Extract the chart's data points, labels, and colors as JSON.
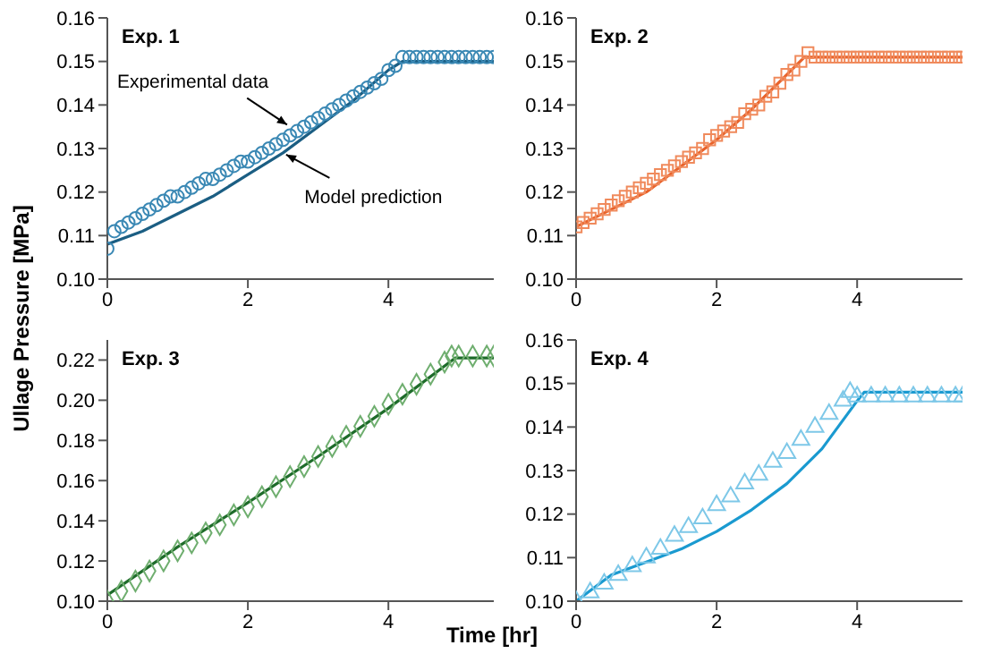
{
  "chart_data": [
    {
      "type": "scatter",
      "title": "Exp. 1",
      "ylabel": "Ullage Pressure [MPa]",
      "xlim": [
        0,
        5.5
      ],
      "xticks": [
        0,
        2,
        4
      ],
      "ylim": [
        0.1,
        0.16
      ],
      "yticks": [
        {
          "value": 0.1,
          "label": "0.10"
        },
        {
          "value": 0.11,
          "label": "0.11"
        },
        {
          "value": 0.12,
          "label": "0.12"
        },
        {
          "value": 0.13,
          "label": "0.13"
        },
        {
          "value": 0.14,
          "label": "0.14"
        },
        {
          "value": 0.15,
          "label": "0.15"
        },
        {
          "value": 0.16,
          "label": "0.16"
        }
      ],
      "grid": false,
      "annotations": [
        {
          "text": "Experimental data",
          "x": 2.6,
          "y": 0.135
        },
        {
          "text": "Model prediction",
          "x": 2.5,
          "y": 0.129
        }
      ],
      "series": [
        {
          "marker": "circle",
          "color": "#3a88b4",
          "x": [
            0,
            0.1,
            0.2,
            0.3,
            0.4,
            0.5,
            0.6,
            0.7,
            0.8,
            0.9,
            1.0,
            1.1,
            1.2,
            1.3,
            1.4,
            1.5,
            1.6,
            1.7,
            1.8,
            1.9,
            2.0,
            2.1,
            2.2,
            2.3,
            2.4,
            2.5,
            2.6,
            2.7,
            2.8,
            2.9,
            3.0,
            3.1,
            3.2,
            3.3,
            3.4,
            3.5,
            3.6,
            3.7,
            3.8,
            3.9,
            4.0,
            4.1,
            4.2,
            4.3,
            4.4,
            4.5,
            4.6,
            4.7,
            4.8,
            4.9,
            5.0,
            5.1,
            5.2,
            5.3,
            5.4,
            5.5
          ],
          "values": [
            0.107,
            0.111,
            0.112,
            0.113,
            0.114,
            0.115,
            0.116,
            0.117,
            0.118,
            0.119,
            0.119,
            0.12,
            0.121,
            0.122,
            0.123,
            0.123,
            0.124,
            0.125,
            0.126,
            0.127,
            0.127,
            0.128,
            0.129,
            0.13,
            0.131,
            0.132,
            0.133,
            0.134,
            0.135,
            0.136,
            0.137,
            0.138,
            0.139,
            0.14,
            0.141,
            0.142,
            0.143,
            0.144,
            0.145,
            0.146,
            0.148,
            0.149,
            0.151,
            0.151,
            0.151,
            0.151,
            0.151,
            0.151,
            0.151,
            0.151,
            0.151,
            0.151,
            0.151,
            0.151,
            0.151,
            0.151
          ]
        },
        {
          "type": "line",
          "color": "#1b5e83",
          "x": [
            0,
            0.5,
            1,
            1.5,
            2,
            2.5,
            3,
            3.5,
            4,
            4.2,
            5.5
          ],
          "values": [
            0.108,
            0.111,
            0.115,
            0.119,
            0.124,
            0.129,
            0.135,
            0.141,
            0.148,
            0.15,
            0.15
          ]
        }
      ]
    },
    {
      "type": "scatter",
      "title": "Exp. 2",
      "xlim": [
        0,
        5.5
      ],
      "xticks": [
        0,
        2,
        4
      ],
      "ylim": [
        0.1,
        0.16
      ],
      "yticks": [
        {
          "value": 0.1,
          "label": "0.10"
        },
        {
          "value": 0.11,
          "label": "0.11"
        },
        {
          "value": 0.12,
          "label": "0.12"
        },
        {
          "value": 0.13,
          "label": "0.13"
        },
        {
          "value": 0.14,
          "label": "0.14"
        },
        {
          "value": 0.15,
          "label": "0.15"
        },
        {
          "value": 0.16,
          "label": "0.16"
        }
      ],
      "grid": false,
      "series": [
        {
          "marker": "square",
          "color": "#f08a5c",
          "x": [
            0,
            0.1,
            0.2,
            0.3,
            0.4,
            0.5,
            0.6,
            0.7,
            0.8,
            0.9,
            1.0,
            1.1,
            1.2,
            1.3,
            1.4,
            1.5,
            1.6,
            1.7,
            1.8,
            1.9,
            2.0,
            2.1,
            2.2,
            2.3,
            2.4,
            2.5,
            2.6,
            2.7,
            2.8,
            2.9,
            3.0,
            3.1,
            3.2,
            3.3,
            3.4,
            3.5,
            3.6,
            3.7,
            3.8,
            3.9,
            4.0,
            4.1,
            4.2,
            4.3,
            4.4,
            4.5,
            4.6,
            4.7,
            4.8,
            4.9,
            5.0,
            5.1,
            5.2,
            5.3,
            5.4,
            5.5
          ],
          "values": [
            0.112,
            0.113,
            0.114,
            0.115,
            0.116,
            0.117,
            0.118,
            0.119,
            0.12,
            0.121,
            0.122,
            0.123,
            0.124,
            0.125,
            0.126,
            0.127,
            0.128,
            0.129,
            0.13,
            0.132,
            0.133,
            0.134,
            0.135,
            0.136,
            0.138,
            0.139,
            0.14,
            0.142,
            0.143,
            0.145,
            0.147,
            0.148,
            0.15,
            0.152,
            0.151,
            0.151,
            0.151,
            0.151,
            0.151,
            0.151,
            0.151,
            0.151,
            0.151,
            0.151,
            0.151,
            0.151,
            0.151,
            0.151,
            0.151,
            0.151,
            0.151,
            0.151,
            0.151,
            0.151,
            0.151,
            0.151
          ]
        },
        {
          "type": "line",
          "color": "#e8622a",
          "x": [
            0,
            0.5,
            1,
            1.5,
            2,
            2.5,
            3,
            3.25,
            5.5
          ],
          "values": [
            0.112,
            0.116,
            0.12,
            0.126,
            0.132,
            0.139,
            0.147,
            0.151,
            0.151
          ]
        }
      ]
    },
    {
      "type": "scatter",
      "title": "Exp. 3",
      "xlabel": "Time [hr]",
      "xlim": [
        0,
        5.5
      ],
      "xticks": [
        0,
        2,
        4
      ],
      "ylim": [
        0.1,
        0.23
      ],
      "yticks": [
        {
          "value": 0.1,
          "label": "0.10"
        },
        {
          "value": 0.12,
          "label": "0.12"
        },
        {
          "value": 0.14,
          "label": "0.14"
        },
        {
          "value": 0.16,
          "label": "0.16"
        },
        {
          "value": 0.18,
          "label": "0.18"
        },
        {
          "value": 0.2,
          "label": "0.20"
        },
        {
          "value": 0.22,
          "label": "0.22"
        }
      ],
      "grid": false,
      "series": [
        {
          "marker": "diamond",
          "color": "#6fae6f",
          "x": [
            0,
            0.2,
            0.4,
            0.6,
            0.8,
            1.0,
            1.2,
            1.4,
            1.6,
            1.8,
            2.0,
            2.2,
            2.4,
            2.6,
            2.8,
            3.0,
            3.2,
            3.4,
            3.6,
            3.8,
            4.0,
            4.2,
            4.4,
            4.6,
            4.8,
            4.9,
            5.0,
            5.2,
            5.4,
            5.5
          ],
          "values": [
            0.1,
            0.105,
            0.11,
            0.115,
            0.12,
            0.125,
            0.129,
            0.134,
            0.138,
            0.143,
            0.147,
            0.152,
            0.157,
            0.162,
            0.167,
            0.172,
            0.177,
            0.182,
            0.187,
            0.192,
            0.198,
            0.203,
            0.208,
            0.213,
            0.219,
            0.222,
            0.222,
            0.222,
            0.222,
            0.222
          ]
        },
        {
          "type": "line",
          "color": "#1e6b2a",
          "x": [
            0,
            1,
            2,
            3,
            4,
            4.95,
            5.5
          ],
          "values": [
            0.103,
            0.127,
            0.149,
            0.172,
            0.196,
            0.221,
            0.221
          ]
        }
      ]
    },
    {
      "type": "scatter",
      "title": "Exp. 4",
      "xlim": [
        0,
        5.5
      ],
      "xticks": [
        0,
        2,
        4
      ],
      "ylim": [
        0.1,
        0.16
      ],
      "yticks": [
        {
          "value": 0.1,
          "label": "0.10"
        },
        {
          "value": 0.11,
          "label": "0.11"
        },
        {
          "value": 0.12,
          "label": "0.12"
        },
        {
          "value": 0.13,
          "label": "0.13"
        },
        {
          "value": 0.14,
          "label": "0.14"
        },
        {
          "value": 0.15,
          "label": "0.15"
        },
        {
          "value": 0.16,
          "label": "0.16"
        }
      ],
      "grid": false,
      "series": [
        {
          "marker": "triangle",
          "color": "#7ec8e8",
          "x": [
            0,
            0.2,
            0.4,
            0.6,
            0.8,
            1.0,
            1.2,
            1.4,
            1.6,
            1.8,
            2.0,
            2.2,
            2.4,
            2.6,
            2.8,
            3.0,
            3.2,
            3.4,
            3.6,
            3.8,
            3.9,
            4.0,
            4.2,
            4.4,
            4.6,
            4.8,
            5.0,
            5.2,
            5.4,
            5.5
          ],
          "values": [
            0.1,
            0.102,
            0.104,
            0.106,
            0.108,
            0.11,
            0.112,
            0.115,
            0.117,
            0.119,
            0.122,
            0.124,
            0.127,
            0.129,
            0.132,
            0.134,
            0.137,
            0.14,
            0.143,
            0.146,
            0.148,
            0.147,
            0.147,
            0.147,
            0.147,
            0.147,
            0.147,
            0.147,
            0.147,
            0.147
          ]
        },
        {
          "type": "line",
          "color": "#1a9ad0",
          "x": [
            0,
            0.5,
            1,
            1.5,
            2,
            2.5,
            3,
            3.5,
            4,
            4.1,
            5.5
          ],
          "values": [
            0.1,
            0.106,
            0.109,
            0.112,
            0.116,
            0.121,
            0.127,
            0.135,
            0.146,
            0.148,
            0.148
          ]
        }
      ]
    }
  ]
}
